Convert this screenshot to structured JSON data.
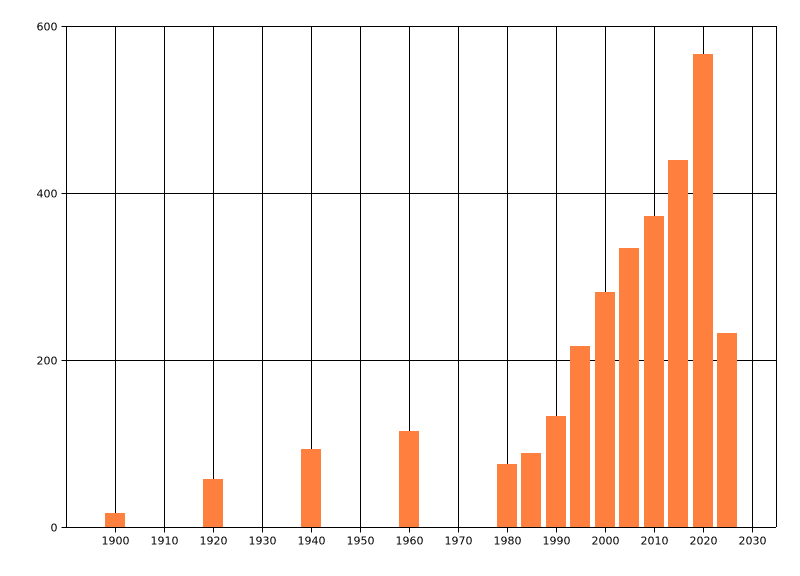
{
  "chart_data": {
    "type": "bar",
    "title": "",
    "xlabel": "",
    "ylabel": "",
    "x": [
      1900,
      1920,
      1940,
      1960,
      1980,
      1985,
      1990,
      1995,
      2000,
      2005,
      2010,
      2015,
      2020,
      2025
    ],
    "values": [
      17,
      58,
      94,
      115,
      76,
      89,
      133,
      217,
      282,
      334,
      372,
      440,
      566,
      232
    ],
    "xlim": [
      1890,
      2035
    ],
    "ylim": [
      0,
      600
    ],
    "x_ticks": [
      1900,
      1910,
      1920,
      1930,
      1940,
      1950,
      1960,
      1970,
      1980,
      1990,
      2000,
      2010,
      2020,
      2030
    ],
    "y_ticks": [
      0,
      200,
      400,
      600
    ],
    "bar_width_years": 4,
    "grid": true,
    "bar_color": "#FF7F3F"
  }
}
